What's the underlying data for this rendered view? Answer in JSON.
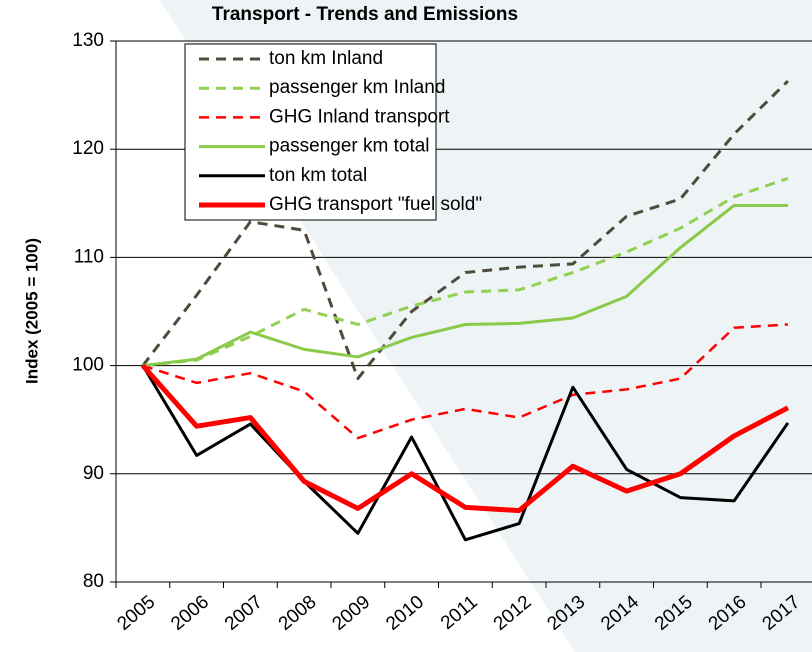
{
  "chart_data": {
    "type": "line",
    "title": "Transport - Trends and Emissions",
    "y_label": "Index (2005 = 100)",
    "categories": [
      "2005",
      "2006",
      "2007",
      "2008",
      "2009",
      "2010",
      "2011",
      "2012",
      "2013",
      "2014",
      "2015",
      "2016",
      "2017"
    ],
    "series": [
      {
        "name": "ton km Inland",
        "color": "#4f4b3b",
        "style": "dashed",
        "linewidth": 3,
        "values": [
          100,
          106.5,
          113.3,
          112.5,
          98.8,
          105,
          108.6,
          109.1,
          109.4,
          113.8,
          115.4,
          121.4,
          126.3
        ]
      },
      {
        "name": "passenger km Inland",
        "color": "#92d050",
        "style": "dashed",
        "linewidth": 3,
        "values": [
          100,
          100.5,
          102.7,
          105.2,
          103.8,
          105.5,
          106.8,
          107,
          108.6,
          110.5,
          112.7,
          115.6,
          117.3
        ]
      },
      {
        "name": "GHG Inland transport",
        "color": "#ff0000",
        "style": "dashed",
        "linewidth": 2.5,
        "values": [
          100,
          98.4,
          99.3,
          97.6,
          93.3,
          95,
          96,
          95.2,
          97.3,
          97.8,
          98.8,
          103.5,
          103.8
        ]
      },
      {
        "name": "passenger km total",
        "color": "#8ac94a",
        "style": "solid",
        "linewidth": 3,
        "values": [
          100,
          100.6,
          103.1,
          101.5,
          100.8,
          102.6,
          103.8,
          103.9,
          104.4,
          106.4,
          110.9,
          114.8,
          114.8
        ]
      },
      {
        "name": "ton km total",
        "color": "#000000",
        "style": "solid",
        "linewidth": 3,
        "values": [
          100,
          91.7,
          94.6,
          89.3,
          84.5,
          93.4,
          83.9,
          85.4,
          98,
          90.4,
          87.8,
          87.5,
          94.7
        ]
      },
      {
        "name": "GHG transport \"fuel sold\"",
        "color": "#ff0000",
        "style": "solid",
        "linewidth": 5,
        "values": [
          100,
          94.4,
          95.2,
          89.3,
          86.8,
          90,
          86.9,
          86.6,
          90.7,
          88.4,
          90,
          93.5,
          96.1
        ]
      }
    ],
    "ylim": [
      80,
      130
    ],
    "yticks": [
      80,
      90,
      100,
      110,
      120,
      130
    ],
    "grid": true,
    "legend": "upper left"
  }
}
